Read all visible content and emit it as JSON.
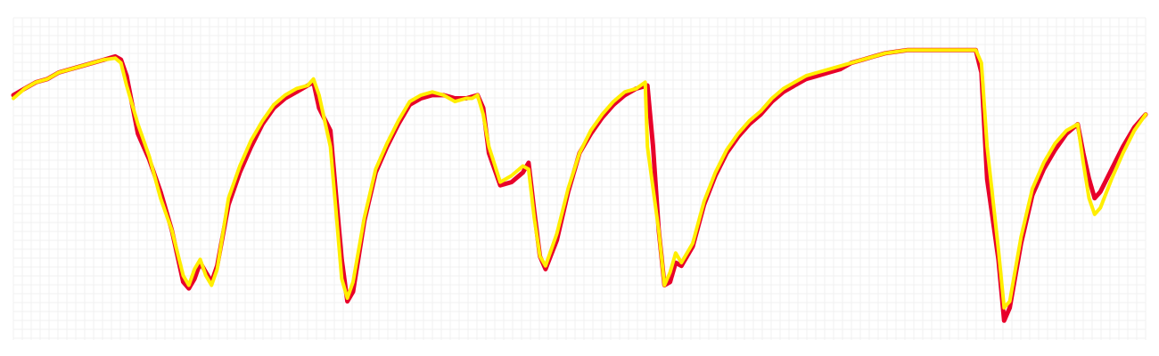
{
  "chart_data": {
    "type": "line",
    "title": "",
    "xlabel": "",
    "ylabel": "",
    "grid": true,
    "legend": "none",
    "xlim": [
      0,
      100
    ],
    "ylim": [
      0,
      100
    ],
    "series": [
      {
        "color": "#e8002a",
        "points": [
          [
            0,
            76
          ],
          [
            1,
            78
          ],
          [
            2,
            80
          ],
          [
            3,
            81
          ],
          [
            4,
            83
          ],
          [
            5,
            84
          ],
          [
            6,
            85
          ],
          [
            7,
            86
          ],
          [
            8,
            87
          ],
          [
            9,
            88
          ],
          [
            9.5,
            87
          ],
          [
            10,
            82
          ],
          [
            11,
            64
          ],
          [
            12,
            56
          ],
          [
            13,
            46
          ],
          [
            14,
            34
          ],
          [
            15,
            18
          ],
          [
            15.5,
            16
          ],
          [
            16,
            19
          ],
          [
            16.5,
            24
          ],
          [
            17,
            21
          ],
          [
            17.5,
            18
          ],
          [
            18,
            23
          ],
          [
            19,
            42
          ],
          [
            20,
            52
          ],
          [
            21,
            60
          ],
          [
            22,
            67
          ],
          [
            23,
            72
          ],
          [
            24,
            75
          ],
          [
            25,
            77
          ],
          [
            26,
            79
          ],
          [
            26.5,
            80
          ],
          [
            27,
            72
          ],
          [
            28,
            65
          ],
          [
            28.5,
            45
          ],
          [
            29,
            25
          ],
          [
            29.5,
            12
          ],
          [
            30,
            15
          ],
          [
            31,
            37
          ],
          [
            32,
            52
          ],
          [
            33,
            60
          ],
          [
            34,
            67
          ],
          [
            35,
            73
          ],
          [
            36,
            75
          ],
          [
            37,
            76
          ],
          [
            38,
            76
          ],
          [
            39,
            75
          ],
          [
            40,
            75
          ],
          [
            41,
            76
          ],
          [
            41.5,
            72
          ],
          [
            42,
            58
          ],
          [
            43,
            48
          ],
          [
            44,
            49
          ],
          [
            45,
            52
          ],
          [
            45.5,
            55
          ],
          [
            46,
            40
          ],
          [
            46.5,
            26
          ],
          [
            47,
            22
          ],
          [
            48,
            31
          ],
          [
            49,
            46
          ],
          [
            50,
            58
          ],
          [
            51,
            64
          ],
          [
            52,
            69
          ],
          [
            53,
            73
          ],
          [
            54,
            76
          ],
          [
            55,
            78
          ],
          [
            56,
            79
          ],
          [
            56.5,
            60
          ],
          [
            57,
            34
          ],
          [
            57.5,
            17
          ],
          [
            58,
            18
          ],
          [
            58.5,
            24
          ],
          [
            59,
            23
          ],
          [
            60,
            29
          ],
          [
            61,
            42
          ],
          [
            62,
            51
          ],
          [
            63,
            58
          ],
          [
            64,
            63
          ],
          [
            65,
            67
          ],
          [
            66,
            70
          ],
          [
            67,
            74
          ],
          [
            68,
            77
          ],
          [
            69,
            79
          ],
          [
            70,
            81
          ],
          [
            71,
            82
          ],
          [
            72,
            83
          ],
          [
            73,
            84
          ],
          [
            74,
            86
          ],
          [
            75,
            87
          ],
          [
            76,
            88
          ],
          [
            77,
            89
          ],
          [
            78,
            89.5
          ],
          [
            79,
            90
          ],
          [
            80,
            90
          ],
          [
            81,
            90
          ],
          [
            82,
            90
          ],
          [
            84,
            90
          ],
          [
            85,
            90
          ],
          [
            85.5,
            83
          ],
          [
            86,
            50
          ],
          [
            87,
            25
          ],
          [
            87.5,
            6
          ],
          [
            88,
            10
          ],
          [
            89,
            30
          ],
          [
            90,
            45
          ],
          [
            91,
            53
          ],
          [
            92,
            59
          ],
          [
            93,
            64
          ],
          [
            94,
            67
          ],
          [
            94.5,
            58
          ],
          [
            95,
            50
          ],
          [
            95.5,
            44
          ],
          [
            96,
            46
          ],
          [
            97,
            53
          ],
          [
            98,
            60
          ],
          [
            99,
            66
          ],
          [
            100,
            70
          ]
        ]
      },
      {
        "color": "#ffee00",
        "points": [
          [
            0,
            75
          ],
          [
            1,
            78
          ],
          [
            2,
            80
          ],
          [
            3,
            81
          ],
          [
            4,
            83
          ],
          [
            5,
            84
          ],
          [
            6,
            85
          ],
          [
            7,
            86
          ],
          [
            8,
            87
          ],
          [
            9,
            87.5
          ],
          [
            9.5,
            86
          ],
          [
            10,
            79
          ],
          [
            11,
            67
          ],
          [
            12,
            57
          ],
          [
            13,
            44
          ],
          [
            14,
            34
          ],
          [
            15,
            20
          ],
          [
            15.5,
            17
          ],
          [
            16,
            22
          ],
          [
            16.5,
            25
          ],
          [
            17,
            20
          ],
          [
            17.5,
            17
          ],
          [
            18,
            22
          ],
          [
            19,
            44
          ],
          [
            20,
            54
          ],
          [
            21,
            62
          ],
          [
            22,
            68
          ],
          [
            23,
            73
          ],
          [
            24,
            76
          ],
          [
            25,
            78
          ],
          [
            26,
            79
          ],
          [
            26.5,
            81
          ],
          [
            27,
            76
          ],
          [
            28,
            60
          ],
          [
            28.5,
            40
          ],
          [
            29,
            19
          ],
          [
            29.5,
            13
          ],
          [
            30,
            18
          ],
          [
            31,
            38
          ],
          [
            32,
            53
          ],
          [
            33,
            61
          ],
          [
            34,
            68
          ],
          [
            35,
            74
          ],
          [
            36,
            76
          ],
          [
            37,
            77
          ],
          [
            38,
            76
          ],
          [
            39,
            74
          ],
          [
            40,
            75
          ],
          [
            40.5,
            75
          ],
          [
            41,
            76
          ],
          [
            41.5,
            70
          ],
          [
            42,
            60
          ],
          [
            43,
            49
          ],
          [
            44,
            51
          ],
          [
            45,
            54
          ],
          [
            45.5,
            53
          ],
          [
            46,
            38
          ],
          [
            46.5,
            26
          ],
          [
            47,
            23
          ],
          [
            48,
            33
          ],
          [
            49,
            47
          ],
          [
            50,
            58
          ],
          [
            51,
            65
          ],
          [
            52,
            70
          ],
          [
            53,
            74
          ],
          [
            54,
            77
          ],
          [
            55,
            78
          ],
          [
            55.8,
            80
          ],
          [
            56,
            60
          ],
          [
            57,
            34
          ],
          [
            57.5,
            17
          ],
          [
            58,
            21
          ],
          [
            58.5,
            27
          ],
          [
            59,
            24
          ],
          [
            60,
            30
          ],
          [
            61,
            43
          ],
          [
            62,
            52
          ],
          [
            63,
            59
          ],
          [
            64,
            64
          ],
          [
            65,
            68
          ],
          [
            66,
            71
          ],
          [
            67,
            75
          ],
          [
            68,
            78
          ],
          [
            69,
            80
          ],
          [
            70,
            82
          ],
          [
            71,
            83
          ],
          [
            72,
            84
          ],
          [
            73,
            85
          ],
          [
            74,
            86
          ],
          [
            75,
            87
          ],
          [
            76,
            88
          ],
          [
            77,
            89
          ],
          [
            78,
            89.5
          ],
          [
            79,
            90
          ],
          [
            80,
            90
          ],
          [
            81,
            90
          ],
          [
            82,
            90
          ],
          [
            84,
            90
          ],
          [
            85,
            90
          ],
          [
            85.5,
            86
          ],
          [
            86,
            60
          ],
          [
            87,
            28
          ],
          [
            87.5,
            10
          ],
          [
            88,
            12
          ],
          [
            89,
            32
          ],
          [
            90,
            47
          ],
          [
            91,
            55
          ],
          [
            92,
            61
          ],
          [
            93,
            65
          ],
          [
            94,
            67
          ],
          [
            94.5,
            55
          ],
          [
            95,
            44
          ],
          [
            95.5,
            39
          ],
          [
            96,
            41
          ],
          [
            97,
            50
          ],
          [
            98,
            58
          ],
          [
            99,
            65
          ],
          [
            100,
            70
          ]
        ]
      }
    ]
  }
}
